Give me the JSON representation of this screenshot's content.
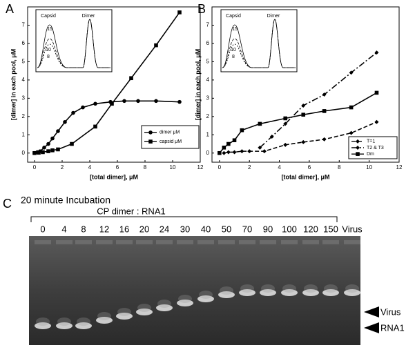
{
  "chart_data": [
    {
      "type": "line",
      "panel": "A",
      "x_label": "[total dimer], μM",
      "y_label": "[dimer] in each pool, μM",
      "xlim": [
        -0.5,
        12
      ],
      "ylim": [
        -0.5,
        8
      ],
      "xticks": [
        0,
        2,
        4,
        6,
        8,
        10,
        12
      ],
      "yticks": [
        0,
        1,
        2,
        3,
        4,
        5,
        6,
        7
      ],
      "legend_position": "lower right",
      "inset_labels": [
        "Capsid",
        "Dimer",
        "15",
        "10",
        "8"
      ],
      "series": [
        {
          "name": "dimer μM",
          "color": "#000000",
          "marker": "circle",
          "line_style": "solid",
          "x": [
            0,
            0.2,
            0.4,
            0.7,
            1,
            1.3,
            1.7,
            2.2,
            2.8,
            3.5,
            4.4,
            5.5,
            6.5,
            7.5,
            8.8,
            10.5
          ],
          "values": [
            0,
            0.05,
            0.1,
            0.3,
            0.5,
            0.8,
            1.2,
            1.7,
            2.2,
            2.5,
            2.7,
            2.8,
            2.85,
            2.85,
            2.85,
            2.8
          ]
        },
        {
          "name": "capsid μM",
          "color": "#000000",
          "marker": "square",
          "line_style": "solid",
          "x": [
            0,
            0.3,
            0.6,
            1,
            1.3,
            1.7,
            2.7,
            4.4,
            5.6,
            7,
            8.8,
            10.5
          ],
          "values": [
            0,
            0.02,
            0.05,
            0.1,
            0.15,
            0.2,
            0.5,
            1.45,
            2.7,
            4.1,
            5.9,
            7.7
          ]
        }
      ]
    },
    {
      "type": "line",
      "panel": "B",
      "x_label": "[total dimer], μM",
      "y_label": "[dimer] in each pool, μM",
      "xlim": [
        -0.5,
        12
      ],
      "ylim": [
        -0.5,
        8
      ],
      "xticks": [
        0,
        2,
        4,
        6,
        8,
        10,
        12
      ],
      "yticks": [
        0,
        1,
        2,
        3,
        4,
        5,
        6,
        7
      ],
      "legend_position": "lower right",
      "inset_labels": [
        "Capsid",
        "Dimer",
        "15",
        "10",
        "8"
      ],
      "series": [
        {
          "name": "T=1",
          "color": "#000000",
          "marker": "diamond",
          "line_style": "dashed",
          "x": [
            0.3,
            0.6,
            1,
            1.5,
            2,
            3,
            4.4,
            5.6,
            7,
            8.8,
            10.5
          ],
          "values": [
            0,
            0.05,
            0.05,
            0.1,
            0.1,
            0.1,
            0.45,
            0.6,
            0.75,
            1.1,
            1.7
          ]
        },
        {
          "name": "T2 & T3",
          "color": "#000000",
          "marker": "diamond",
          "line_style": "dashdot",
          "x": [
            2.7,
            3.5,
            4.4,
            5.6,
            7,
            8.8,
            10.5
          ],
          "values": [
            0.3,
            0.9,
            1.6,
            2.6,
            3.2,
            4.4,
            5.5
          ]
        },
        {
          "name": "Dm",
          "color": "#000000",
          "marker": "square",
          "line_style": "solid",
          "x": [
            0,
            0.3,
            0.6,
            1,
            1.5,
            2.7,
            4.4,
            5.6,
            7,
            8.8,
            10.5
          ],
          "values": [
            0,
            0.3,
            0.5,
            0.7,
            1.25,
            1.6,
            1.9,
            2.1,
            2.3,
            2.5,
            3.3
          ]
        }
      ]
    }
  ],
  "gel": {
    "panel": "C",
    "title": "20 minute Incubation",
    "header": "CP dimer : RNA1",
    "lane_labels": [
      "0",
      "4",
      "8",
      "12",
      "16",
      "20",
      "24",
      "30",
      "40",
      "50",
      "70",
      "90",
      "100",
      "120",
      "150",
      "Virus"
    ],
    "band_labels": [
      "Virus",
      "RNA1"
    ]
  }
}
